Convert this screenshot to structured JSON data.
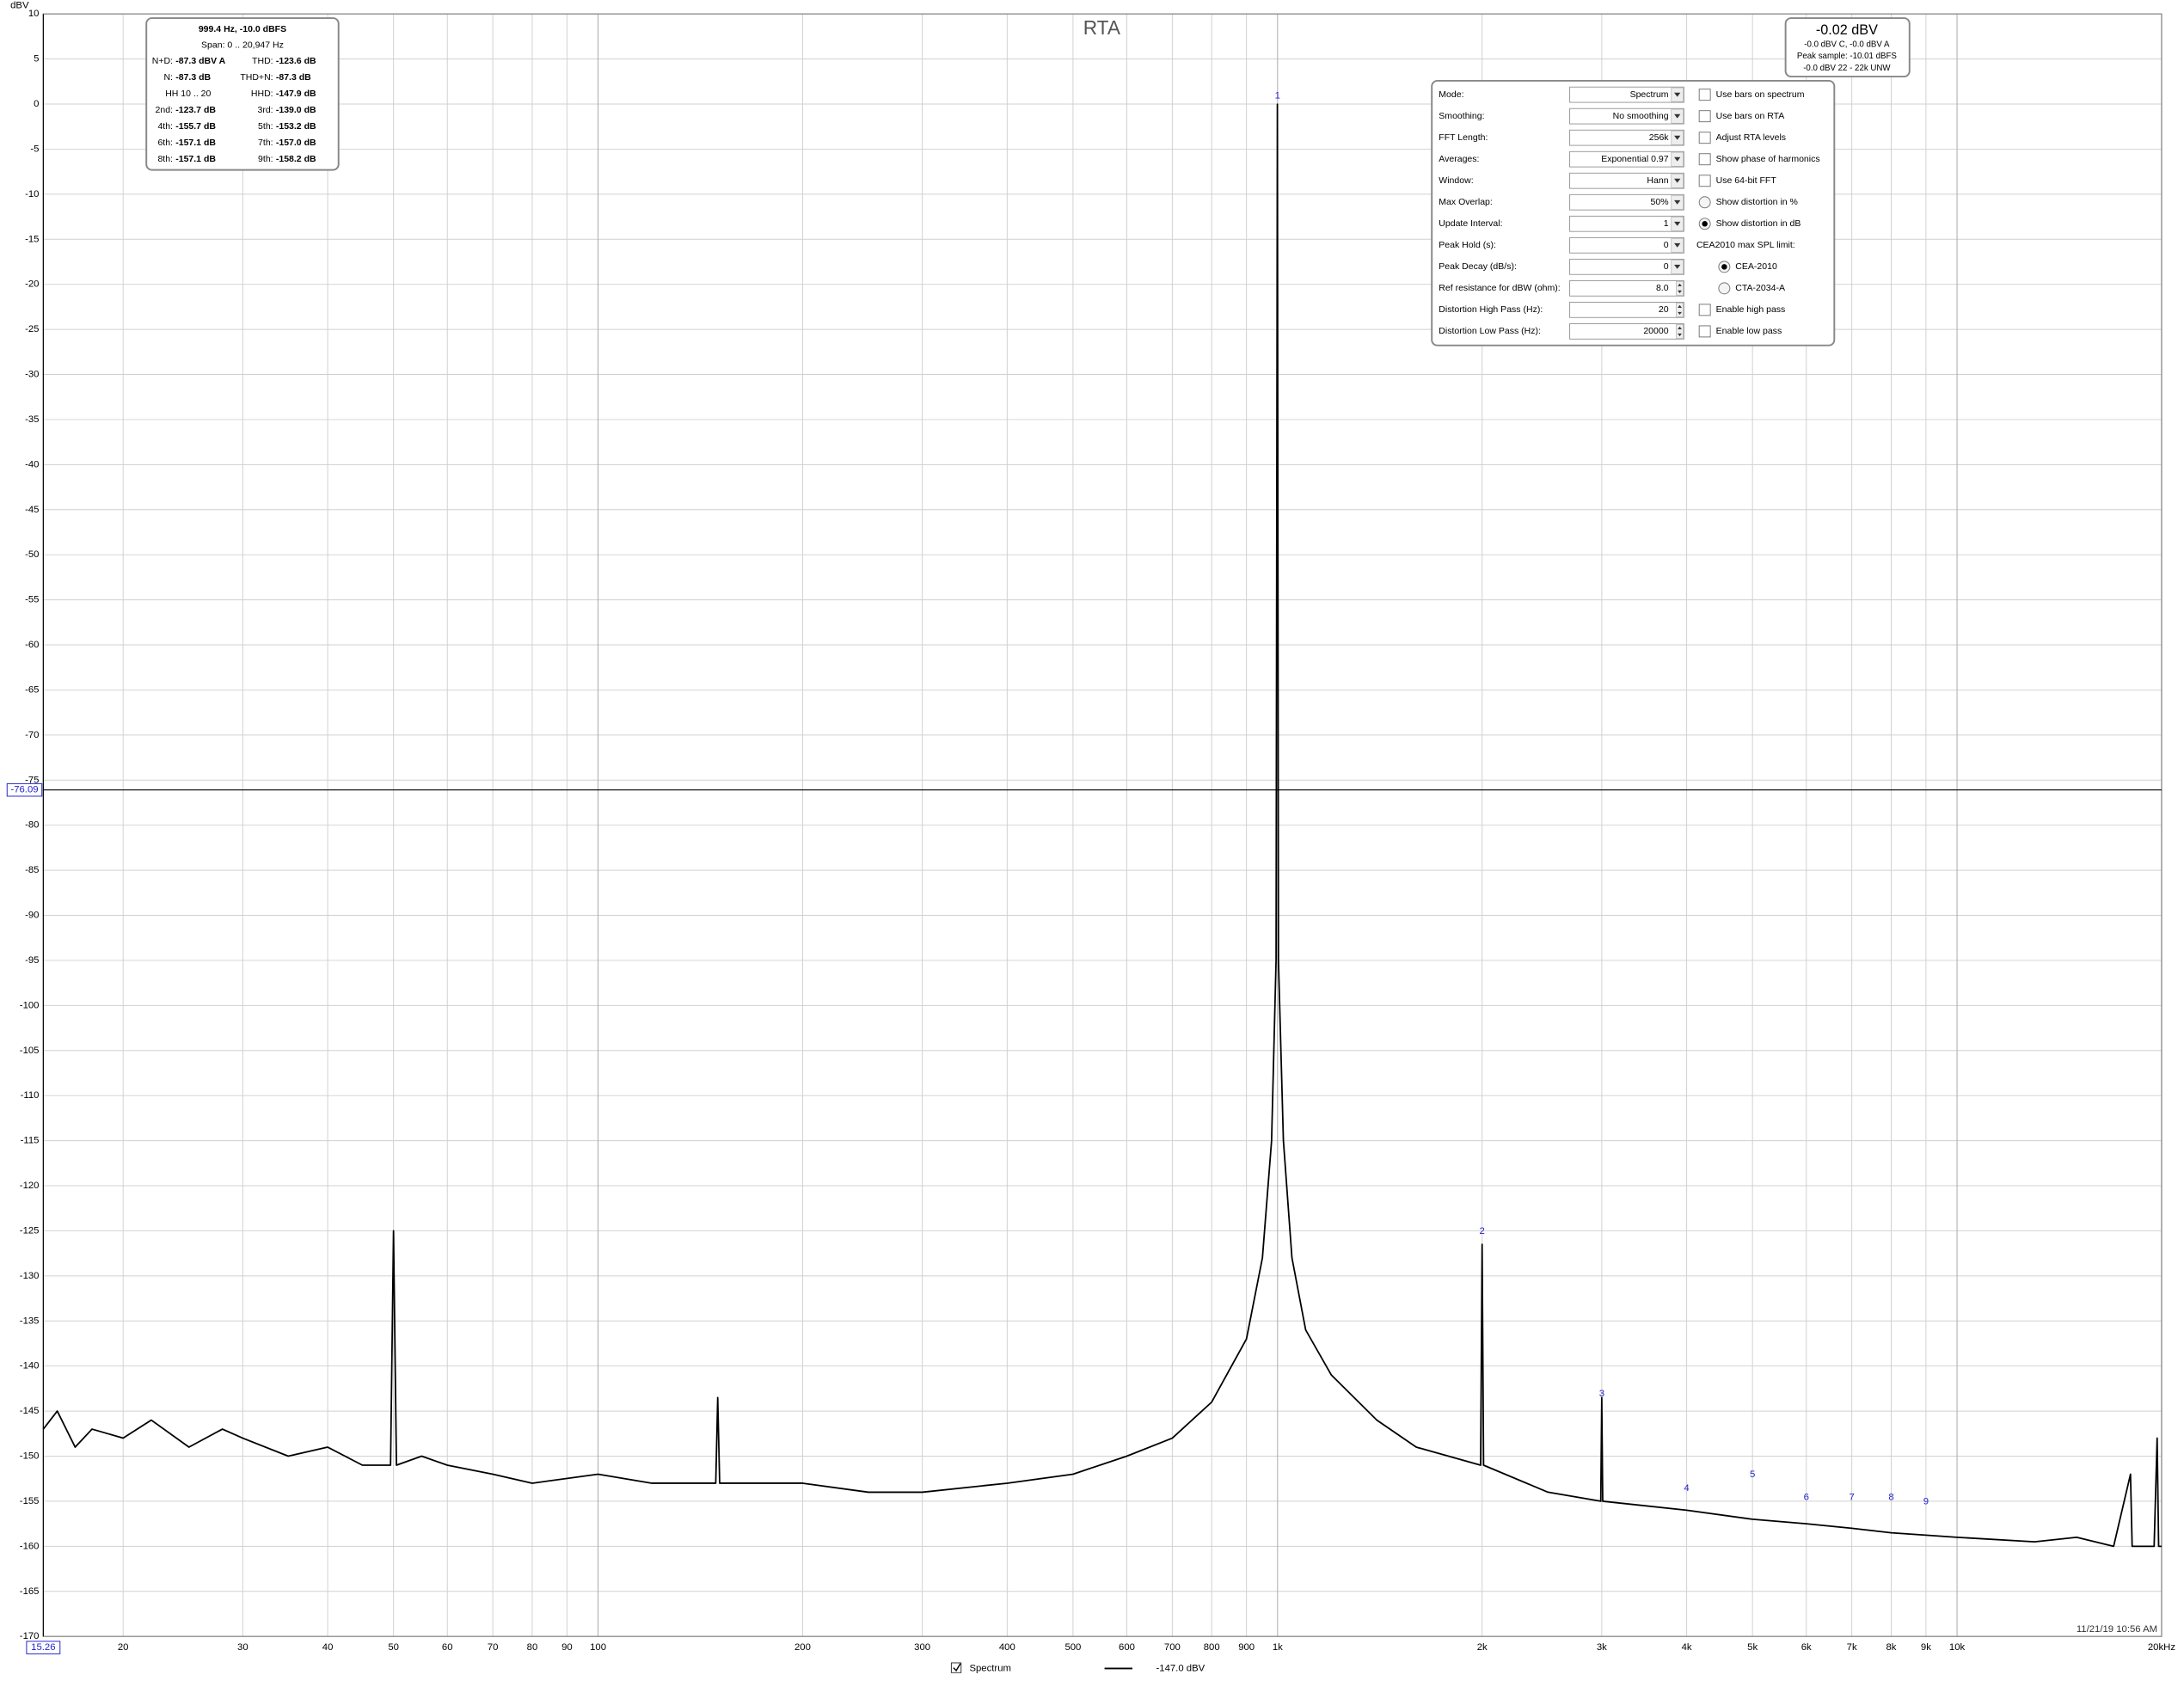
{
  "chart_data": {
    "type": "line",
    "title": "RTA",
    "y_label": "dBV",
    "xscale": "log",
    "xlim": [
      15.26,
      20000
    ],
    "ylim": [
      -170,
      10
    ],
    "grid": true,
    "yticks": [
      10,
      5,
      0,
      -5,
      -10,
      -15,
      -20,
      -25,
      -30,
      -35,
      -40,
      -45,
      -50,
      -55,
      -60,
      -65,
      -70,
      -75,
      -80,
      -85,
      -90,
      -95,
      -100,
      -105,
      -110,
      -115,
      -120,
      -125,
      -130,
      -135,
      -140,
      -145,
      -150,
      -155,
      -160,
      -165,
      -170
    ],
    "xticks": [
      20,
      30,
      40,
      50,
      60,
      70,
      80,
      90,
      100,
      200,
      300,
      400,
      500,
      600,
      700,
      800,
      900,
      {
        "value": 1000,
        "label": "1k"
      },
      {
        "value": 2000,
        "label": "2k"
      },
      {
        "value": 3000,
        "label": "3k"
      },
      {
        "value": 4000,
        "label": "4k"
      },
      {
        "value": 5000,
        "label": "5k"
      },
      {
        "value": 6000,
        "label": "6k"
      },
      {
        "value": 7000,
        "label": "7k"
      },
      {
        "value": 8000,
        "label": "8k"
      },
      {
        "value": 9000,
        "label": "9k"
      },
      {
        "value": 10000,
        "label": "10k"
      },
      {
        "value": 20000,
        "label": "20kHz"
      }
    ],
    "x": [
      15.26,
      16,
      17,
      18,
      20,
      22,
      25,
      28,
      30,
      35,
      40,
      45,
      49.5,
      50,
      50.5,
      55,
      60,
      70,
      80,
      100,
      120,
      149,
      150,
      151,
      200,
      250,
      300,
      400,
      500,
      600,
      700,
      800,
      900,
      950,
      980,
      995,
      999.4,
      1003,
      1020,
      1050,
      1100,
      1200,
      1400,
      1600,
      1990,
      2000,
      2010,
      2500,
      2990,
      3000,
      3010,
      4000,
      5000,
      6000,
      7000,
      8000,
      10000,
      13000,
      15000,
      17000,
      18000,
      18100,
      19500,
      19700,
      19800,
      20000
    ],
    "series": [
      {
        "name": "Spectrum",
        "color": "#000000",
        "values": [
          -147,
          -145,
          -149,
          -147,
          -148,
          -146,
          -149,
          -147,
          -148,
          -150,
          -149,
          -151,
          -151,
          -125,
          -151,
          -150,
          -151,
          -152,
          -153,
          -152,
          -153,
          -153,
          -143.5,
          -153,
          -153,
          -154,
          -154,
          -153,
          -152,
          -150,
          -148,
          -144,
          -137,
          -128,
          -115,
          -95,
          -0.02,
          -95,
          -115,
          -128,
          -136,
          -141,
          -146,
          -149,
          -151,
          -126.5,
          -151,
          -154,
          -155,
          -143.5,
          -155,
          -156,
          -157,
          -157.5,
          -158,
          -158.5,
          -159,
          -159.5,
          -159,
          -160,
          -152,
          -160,
          -160,
          -148,
          -160,
          -160
        ]
      }
    ],
    "legend_readout": "-147.0 dBV",
    "harmonic_markers": [
      {
        "label": "1",
        "x": 1000,
        "y": 0
      },
      {
        "label": "2",
        "x": 2000,
        "y": -126
      },
      {
        "label": "3",
        "x": 3000,
        "y": -144
      },
      {
        "label": "4",
        "x": 4000,
        "y": -154.5
      },
      {
        "label": "5",
        "x": 5000,
        "y": -153
      },
      {
        "label": "6",
        "x": 6000,
        "y": -155.5
      },
      {
        "label": "7",
        "x": 7000,
        "y": -155.5
      },
      {
        "label": "8",
        "x": 8000,
        "y": -155.5
      },
      {
        "label": "9",
        "x": 9000,
        "y": -156
      }
    ],
    "cursor": {
      "x": 15.26,
      "y": -76.09
    },
    "timestamp": "11/21/19 10:56 AM"
  },
  "stats_box": {
    "header": [
      "999.4 Hz, -10.0 dBFS",
      "Span: 0 .. 20,947 Hz"
    ],
    "rows": [
      [
        "N+D:",
        "-87.3 dBV A",
        "THD:",
        "-123.6 dB"
      ],
      [
        "N:",
        "-87.3 dB",
        "THD+N:",
        "-87.3 dB"
      ],
      [
        "HH 10 .. 20",
        "HHD:",
        "-147.9 dB"
      ],
      [
        "2nd:",
        "-123.7 dB",
        "3rd:",
        "-139.0 dB"
      ],
      [
        "4th:",
        "-155.7 dB",
        "5th:",
        "-153.2 dB"
      ],
      [
        "6th:",
        "-157.1 dB",
        "7th:",
        "-157.0 dB"
      ],
      [
        "8th:",
        "-157.1 dB",
        "9th:",
        "-158.2 dB"
      ]
    ]
  },
  "level_box": {
    "main": "-0.02 dBV",
    "lines": [
      "-0.0 dBV C, -0.0 dBV A",
      "Peak sample: -10.01 dBFS",
      "-0.0 dBV 22 - 22k UNW"
    ]
  },
  "controls": {
    "fields": [
      {
        "label": "Mode:",
        "value": "Spectrum",
        "control": "dropdown"
      },
      {
        "label": "Smoothing:",
        "value": "No  smoothing",
        "control": "dropdown"
      },
      {
        "label": "FFT Length:",
        "value": "256k",
        "control": "dropdown"
      },
      {
        "label": "Averages:",
        "value": "Exponential 0.97",
        "control": "dropdown"
      },
      {
        "label": "Window:",
        "value": "Hann",
        "control": "dropdown"
      },
      {
        "label": "Max Overlap:",
        "value": "50%",
        "control": "dropdown"
      },
      {
        "label": "Update Interval:",
        "value": "1",
        "control": "dropdown"
      },
      {
        "label": "Peak Hold (s):",
        "value": "0",
        "control": "dropdown"
      },
      {
        "label": "Peak Decay (dB/s):",
        "value": "0",
        "control": "dropdown"
      },
      {
        "label": "Ref resistance for dBW (ohm):",
        "value": "8.0",
        "control": "spin"
      },
      {
        "label": "Distortion High Pass (Hz):",
        "value": "20",
        "control": "spin"
      },
      {
        "label": "Distortion Low Pass (Hz):",
        "value": "20000",
        "control": "spin"
      }
    ],
    "options": [
      {
        "label": "Use bars on spectrum",
        "control": "checkbox",
        "checked": false
      },
      {
        "label": "Use bars on RTA",
        "control": "checkbox",
        "checked": false
      },
      {
        "label": "Adjust RTA levels",
        "control": "checkbox",
        "checked": false
      },
      {
        "label": "Show phase of harmonics",
        "control": "checkbox",
        "checked": false
      },
      {
        "label": "Use 64-bit FFT",
        "control": "checkbox",
        "checked": false
      },
      {
        "label": "Show distortion in %",
        "control": "radio",
        "checked": false
      },
      {
        "label": "Show distortion in dB",
        "control": "radio",
        "checked": true
      },
      {
        "label": "CEA2010 max SPL limit:",
        "control": "heading",
        "checked": false
      },
      {
        "label": "CEA-2010",
        "control": "radio-indented",
        "checked": true
      },
      {
        "label": "CTA-2034-A",
        "control": "radio-indented",
        "checked": false
      },
      {
        "label": "Enable high pass",
        "control": "checkbox",
        "checked": false
      },
      {
        "label": "Enable low pass",
        "control": "checkbox",
        "checked": false
      }
    ]
  }
}
